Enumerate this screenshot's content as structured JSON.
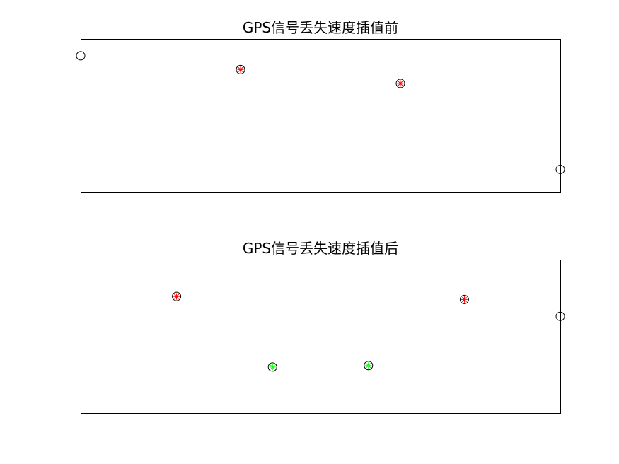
{
  "chart_data": [
    {
      "type": "scatter",
      "title": "GPS信号丢失速度插值前",
      "xlabel": "",
      "ylabel": "",
      "xlim": [
        0,
        6
      ],
      "ylim": [
        0,
        1
      ],
      "grid": false,
      "series": [
        {
          "marker": "circle",
          "edge_color": "#000000",
          "fill_color": "none",
          "points": [
            {
              "x": 0,
              "y": 0.89
            },
            {
              "x": 6,
              "y": 0.15
            }
          ]
        },
        {
          "marker": "circle-star",
          "edge_color": "#000000",
          "fill_color": "#ff0000",
          "points": [
            {
              "x": 2,
              "y": 0.8
            },
            {
              "x": 4,
              "y": 0.71
            }
          ]
        }
      ]
    },
    {
      "type": "scatter",
      "title": "GPS信号丢失速度插值后",
      "xlabel": "",
      "ylabel": "",
      "xlim": [
        0,
        6
      ],
      "ylim": [
        0,
        1
      ],
      "grid": false,
      "series": [
        {
          "marker": "circle",
          "edge_color": "#000000",
          "fill_color": "none",
          "points": [
            {
              "x": 6,
              "y": 0.63
            }
          ]
        },
        {
          "marker": "circle-star",
          "edge_color": "#000000",
          "fill_color": "#ff0000",
          "points": [
            {
              "x": 1.2,
              "y": 0.76
            },
            {
              "x": 4.8,
              "y": 0.74
            }
          ]
        },
        {
          "marker": "circle-star",
          "edge_color": "#000000",
          "fill_color": "#00ff00",
          "points": [
            {
              "x": 2.4,
              "y": 0.3
            },
            {
              "x": 3.6,
              "y": 0.31
            }
          ]
        }
      ]
    }
  ]
}
